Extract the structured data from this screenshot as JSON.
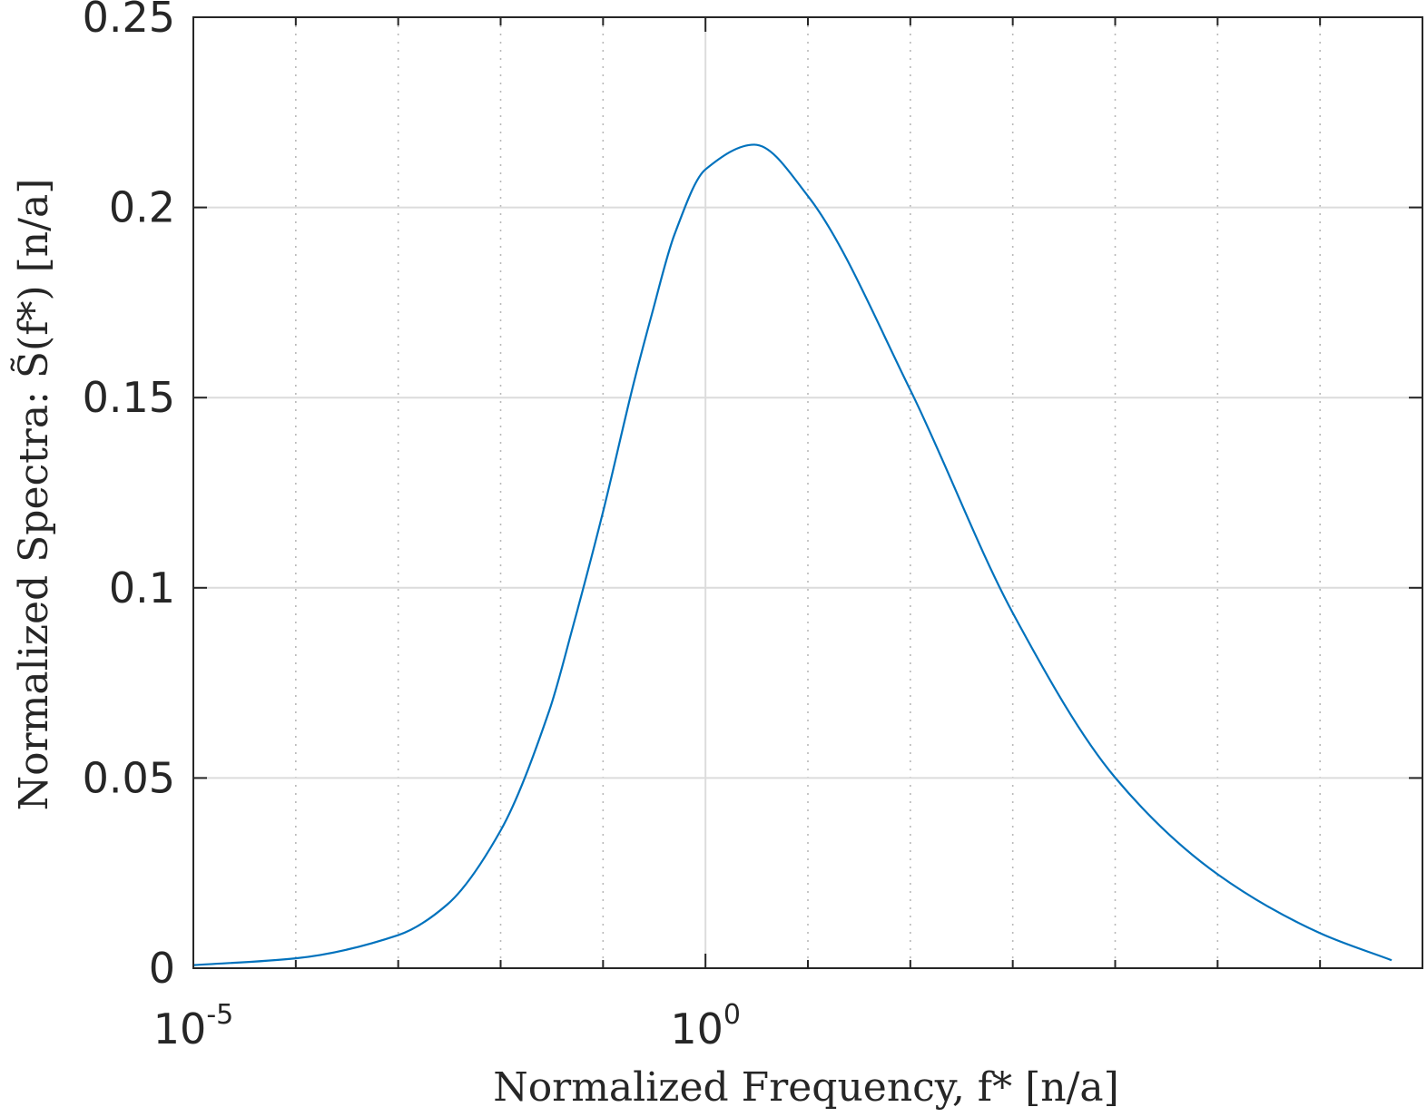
{
  "chart_data": {
    "type": "line",
    "title": "",
    "xlabel": "Normalized Frequency, f* [n/a]",
    "ylabel": "Normalized Spectra: S̃(f*) [n/a]",
    "x_scale": "log",
    "xlim": [
      1e-05,
      10000000
    ],
    "ylim": [
      0,
      0.25
    ],
    "grid": true,
    "legend": "none",
    "x_ticks": [
      {
        "base": "10",
        "exp": "-5",
        "value": 1e-05
      },
      {
        "base": "10",
        "exp": "0",
        "value": 1
      }
    ],
    "y_ticks": [
      "0",
      "0.05",
      "0.1",
      "0.15",
      "0.2",
      "0.25"
    ],
    "line_color": "#0072BD",
    "series": [
      {
        "x": [
          1e-05,
          0.0001,
          0.001,
          0.003,
          0.01,
          0.03,
          0.05,
          0.1,
          0.2,
          0.3,
          0.5,
          1,
          3,
          10,
          100,
          1000,
          10000,
          100000,
          1000000,
          5000000
        ],
        "values": [
          0.0008,
          0.0026,
          0.0087,
          0.0167,
          0.0362,
          0.0679,
          0.0891,
          0.12,
          0.154,
          0.172,
          0.193,
          0.21,
          0.2165,
          0.203,
          0.152,
          0.0934,
          0.0501,
          0.0247,
          0.0092,
          0.0021
        ]
      }
    ]
  }
}
